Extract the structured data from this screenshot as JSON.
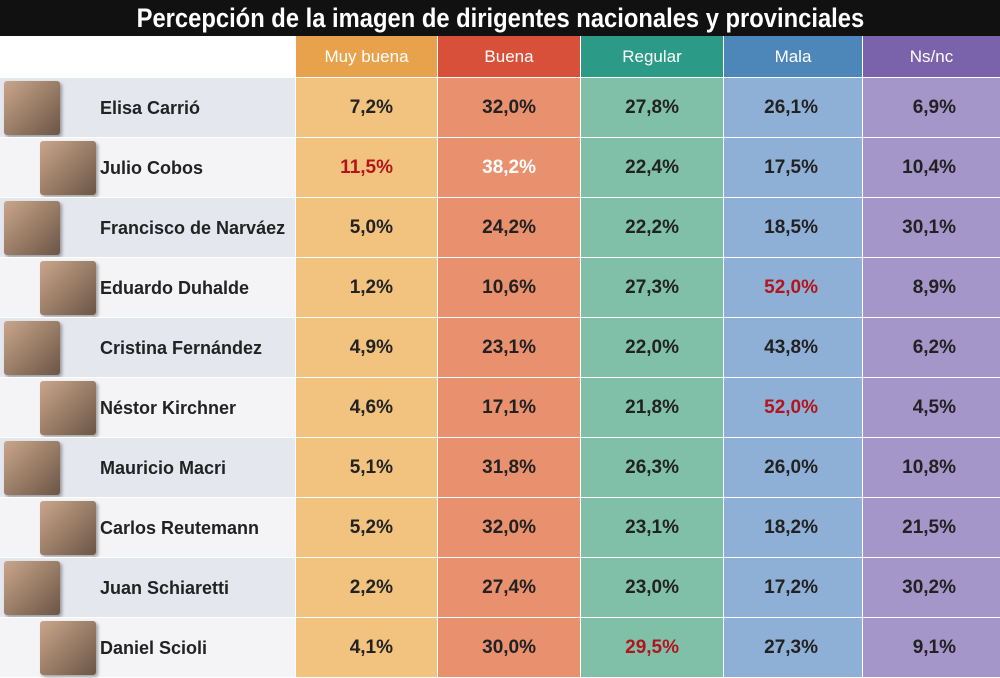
{
  "title": "Percepción de la imagen de dirigentes nacionales y provinciales",
  "columns": [
    "Muy buena",
    "Buena",
    "Regular",
    "Mala",
    "Ns/nc"
  ],
  "header_colors": [
    "#e9a24c",
    "#d8503a",
    "#2b9a86",
    "#4d87b9",
    "#7b63ac"
  ],
  "cell_colors": [
    "#f2c27f",
    "#e9906e",
    "#80bfa8",
    "#8eb0d6",
    "#a596c9"
  ],
  "rows": [
    {
      "name": "Elisa Carrió",
      "values": [
        "7,2%",
        "32,0%",
        "27,8%",
        "26,1%",
        "6,9%"
      ]
    },
    {
      "name": "Julio Cobos",
      "values": [
        "11,5%",
        "38,2%",
        "22,4%",
        "17,5%",
        "10,4%"
      ]
    },
    {
      "name": "Francisco de Narváez",
      "values": [
        "5,0%",
        "24,2%",
        "22,2%",
        "18,5%",
        "30,1%"
      ]
    },
    {
      "name": "Eduardo Duhalde",
      "values": [
        "1,2%",
        "10,6%",
        "27,3%",
        "52,0%",
        "8,9%"
      ]
    },
    {
      "name": "Cristina Fernández",
      "values": [
        "4,9%",
        "23,1%",
        "22,0%",
        "43,8%",
        "6,2%"
      ]
    },
    {
      "name": "Néstor Kirchner",
      "values": [
        "4,6%",
        "17,1%",
        "21,8%",
        "52,0%",
        "4,5%"
      ]
    },
    {
      "name": "Mauricio Macri",
      "values": [
        "5,1%",
        "31,8%",
        "26,3%",
        "26,0%",
        "10,8%"
      ]
    },
    {
      "name": "Carlos Reutemann",
      "values": [
        "5,2%",
        "32,0%",
        "23,1%",
        "18,2%",
        "21,5%"
      ]
    },
    {
      "name": "Juan Schiaretti",
      "values": [
        "2,2%",
        "27,4%",
        "23,0%",
        "17,2%",
        "30,2%"
      ]
    },
    {
      "name": "Daniel Scioli",
      "values": [
        "4,1%",
        "30,0%",
        "29,5%",
        "27,3%",
        "9,1%"
      ]
    }
  ],
  "highlights": [
    {
      "row": 1,
      "col": 0,
      "color": "#b3141c"
    },
    {
      "row": 1,
      "col": 1,
      "color": "#ffffff"
    },
    {
      "row": 3,
      "col": 3,
      "color": "#b3141c"
    },
    {
      "row": 5,
      "col": 3,
      "color": "#b3141c"
    },
    {
      "row": 9,
      "col": 2,
      "color": "#b3141c"
    }
  ]
}
